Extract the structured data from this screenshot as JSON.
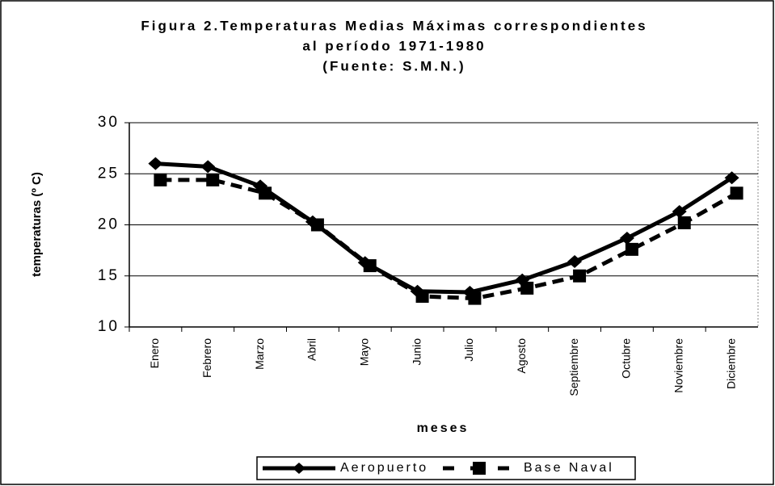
{
  "chart_data": {
    "type": "line",
    "title": [
      "Figura 2.Temperaturas Medias Máximas correspondientes",
      "al período 1971-1980",
      "(Fuente: S.M.N.)"
    ],
    "x_label": "meses",
    "y_label": "temperaturas (º C)",
    "categories": [
      "Enero",
      "Febrero",
      "Marzo",
      "Abril",
      "Mayo",
      "Junio",
      "Julio",
      "Agosto",
      "Septiembre",
      "Octubre",
      "Noviembre",
      "Diciembre"
    ],
    "series": [
      {
        "name": "Aeropuerto",
        "color": "#000000",
        "values": [
          26.0,
          25.7,
          23.8,
          20.3,
          16.3,
          13.5,
          13.4,
          14.6,
          16.4,
          18.7,
          21.3,
          24.6
        ]
      },
      {
        "name": "Base Naval",
        "color": "#000000",
        "values": [
          24.4,
          24.4,
          23.1,
          20.0,
          16.0,
          13.0,
          12.8,
          13.8,
          15.0,
          17.6,
          20.2,
          23.1
        ]
      }
    ],
    "ylim": [
      10,
      30
    ],
    "yticks": [
      10,
      15,
      20,
      25,
      30
    ],
    "grid": true,
    "legend": "bottom"
  }
}
